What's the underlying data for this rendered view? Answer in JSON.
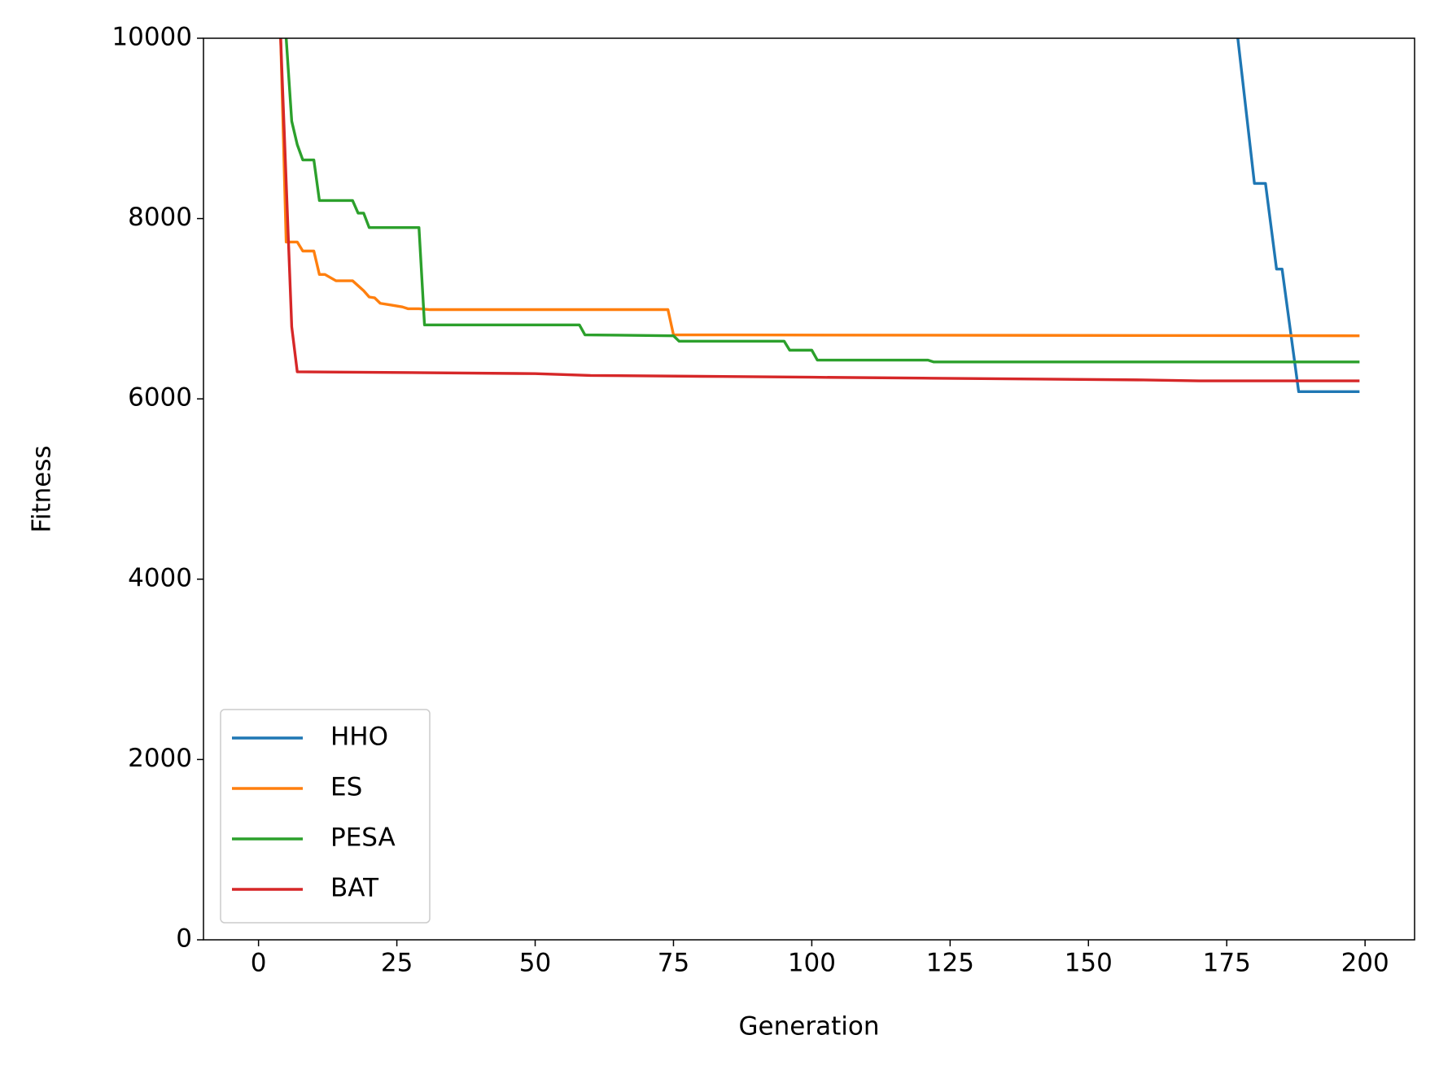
{
  "chart_data": {
    "type": "line",
    "x_label": "Generation",
    "y_label": "Fitness",
    "xlim": [
      -9.95,
      208.95
    ],
    "ylim": [
      0,
      10000
    ],
    "xticks": [
      0,
      25,
      50,
      75,
      100,
      125,
      150,
      175,
      200
    ],
    "yticks": [
      0,
      2000,
      4000,
      6000,
      8000,
      10000
    ],
    "legend": "lower left",
    "series": [
      {
        "name": "HHO",
        "color": "#1f77b4",
        "x": [
          177,
          180,
          182,
          184,
          185,
          188,
          199
        ],
        "values": [
          10000,
          8390,
          8390,
          7440,
          7440,
          6080,
          6080
        ]
      },
      {
        "name": "ES",
        "color": "#ff7f0e",
        "x": [
          4,
          5,
          7,
          8,
          10,
          11,
          12,
          14,
          17,
          19,
          20,
          21,
          22,
          24,
          26,
          27,
          29,
          31,
          74,
          75,
          199
        ],
        "values": [
          10000,
          7740,
          7740,
          7640,
          7640,
          7380,
          7380,
          7310,
          7310,
          7200,
          7130,
          7120,
          7060,
          7040,
          7020,
          7000,
          7000,
          6990,
          6990,
          6710,
          6700
        ]
      },
      {
        "name": "PESA",
        "color": "#2ca02c",
        "x": [
          5,
          6,
          7,
          8,
          10,
          11,
          17,
          18,
          19,
          20,
          29,
          30,
          58,
          59,
          75,
          76,
          95,
          96,
          100,
          101,
          121,
          122,
          199
        ],
        "values": [
          10000,
          9080,
          8820,
          8650,
          8650,
          8200,
          8200,
          8060,
          8060,
          7900,
          7900,
          6820,
          6820,
          6710,
          6700,
          6640,
          6640,
          6540,
          6540,
          6430,
          6430,
          6410,
          6410
        ]
      },
      {
        "name": "BAT",
        "color": "#d62728",
        "x": [
          4,
          6,
          7,
          30,
          50,
          60,
          80,
          100,
          120,
          140,
          160,
          170,
          199
        ],
        "values": [
          10000,
          6800,
          6300,
          6290,
          6280,
          6260,
          6250,
          6240,
          6230,
          6220,
          6210,
          6200,
          6200
        ]
      }
    ]
  }
}
